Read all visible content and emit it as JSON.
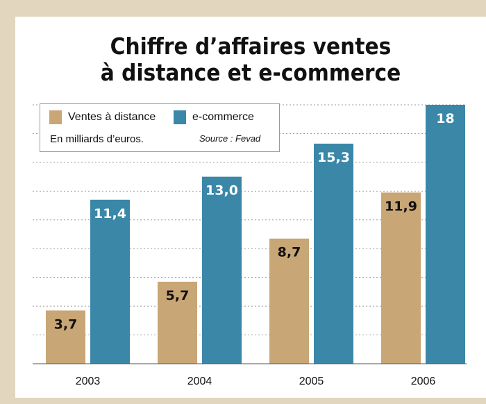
{
  "title_lines": [
    "Chiffre d’affaires ventes",
    "à distance et e-commerce"
  ],
  "legend": {
    "unit_note": "En milliards d’euros.",
    "source": "Source : Fevad"
  },
  "colors": {
    "background": "#e2d6bf",
    "vente_a_distance": "#c9a675",
    "e_commerce": "#3a87a8",
    "gridline": "#9a9a9a"
  },
  "chart_data": {
    "type": "bar",
    "title": "Chiffre d’affaires ventes à distance et e-commerce",
    "categories": [
      "2003",
      "2004",
      "2005",
      "2006"
    ],
    "series": [
      {
        "name": "Ventes à distance",
        "values": [
          3.7,
          5.7,
          8.7,
          11.9
        ],
        "labels": [
          "3,7",
          "5,7",
          "8,7",
          "11,9"
        ]
      },
      {
        "name": "e-commerce",
        "values": [
          11.4,
          13.0,
          15.3,
          18
        ],
        "labels": [
          "11,4",
          "13,0",
          "15,3",
          "18"
        ]
      }
    ],
    "xlabel": "",
    "ylabel": "",
    "ylim": [
      0,
      18
    ],
    "grid": true,
    "legend_position": "top-left"
  }
}
